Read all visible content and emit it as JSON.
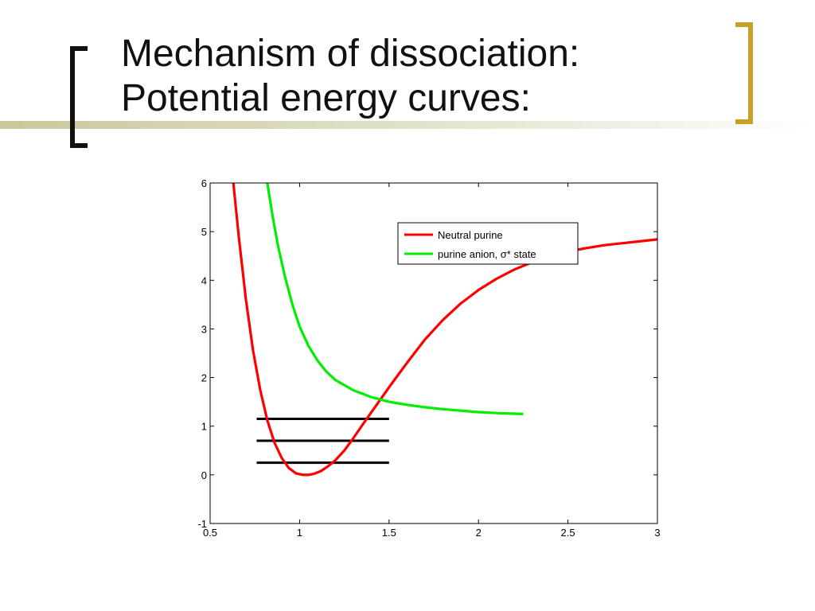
{
  "slide": {
    "title_line1": "Mechanism of dissociation:",
    "title_line2": "Potential energy curves:",
    "accent_color": "#c8a028",
    "bracket_color": "#111111"
  },
  "chart_data": {
    "type": "line",
    "title": "",
    "xlabel": "",
    "ylabel": "",
    "xlim": [
      0.5,
      3
    ],
    "ylim": [
      -1,
      6
    ],
    "xticks": [
      0.5,
      1,
      1.5,
      2,
      2.5,
      3
    ],
    "xtick_labels": [
      "0.5",
      "1",
      "1.5",
      "2",
      "2.5",
      "3"
    ],
    "yticks": [
      -1,
      0,
      1,
      2,
      3,
      4,
      5,
      6
    ],
    "ytick_labels": [
      "-1",
      "0",
      "1",
      "2",
      "3",
      "4",
      "5",
      "6"
    ],
    "grid": false,
    "legend_position": "top-right",
    "series": [
      {
        "name": "Neutral purine",
        "color": "#ff0000",
        "x": [
          0.63,
          0.66,
          0.7,
          0.74,
          0.78,
          0.82,
          0.86,
          0.9,
          0.94,
          0.98,
          1.02,
          1.05,
          1.08,
          1.12,
          1.16,
          1.2,
          1.25,
          1.3,
          1.35,
          1.4,
          1.45,
          1.5,
          1.55,
          1.6,
          1.7,
          1.8,
          1.9,
          2.0,
          2.1,
          2.2,
          2.3,
          2.4,
          2.5,
          2.6,
          2.7,
          2.8,
          2.9,
          3.0
        ],
        "y": [
          6.0,
          4.9,
          3.6,
          2.55,
          1.75,
          1.12,
          0.66,
          0.35,
          0.14,
          0.03,
          0.0,
          0.0,
          0.02,
          0.08,
          0.18,
          0.3,
          0.5,
          0.75,
          1.02,
          1.28,
          1.54,
          1.8,
          2.05,
          2.3,
          2.78,
          3.18,
          3.52,
          3.8,
          4.03,
          4.22,
          4.37,
          4.49,
          4.59,
          4.66,
          4.72,
          4.76,
          4.8,
          4.84
        ]
      },
      {
        "name": "purine anion, σ* state",
        "color": "#00ee00",
        "x": [
          0.82,
          0.85,
          0.88,
          0.92,
          0.96,
          1.0,
          1.05,
          1.1,
          1.15,
          1.2,
          1.3,
          1.4,
          1.5,
          1.6,
          1.7,
          1.8,
          1.9,
          2.0,
          2.1,
          2.25
        ],
        "y": [
          6.0,
          5.3,
          4.7,
          4.05,
          3.5,
          3.05,
          2.65,
          2.35,
          2.12,
          1.95,
          1.74,
          1.6,
          1.5,
          1.44,
          1.39,
          1.35,
          1.32,
          1.29,
          1.27,
          1.25
        ]
      }
    ],
    "annotations": [
      {
        "type": "hline",
        "y": 0.25,
        "x_start": 0.76,
        "x_end": 1.5,
        "color": "#000000"
      },
      {
        "type": "hline",
        "y": 0.7,
        "x_start": 0.76,
        "x_end": 1.5,
        "color": "#000000"
      },
      {
        "type": "hline",
        "y": 1.15,
        "x_start": 0.76,
        "x_end": 1.5,
        "color": "#000000"
      }
    ]
  }
}
